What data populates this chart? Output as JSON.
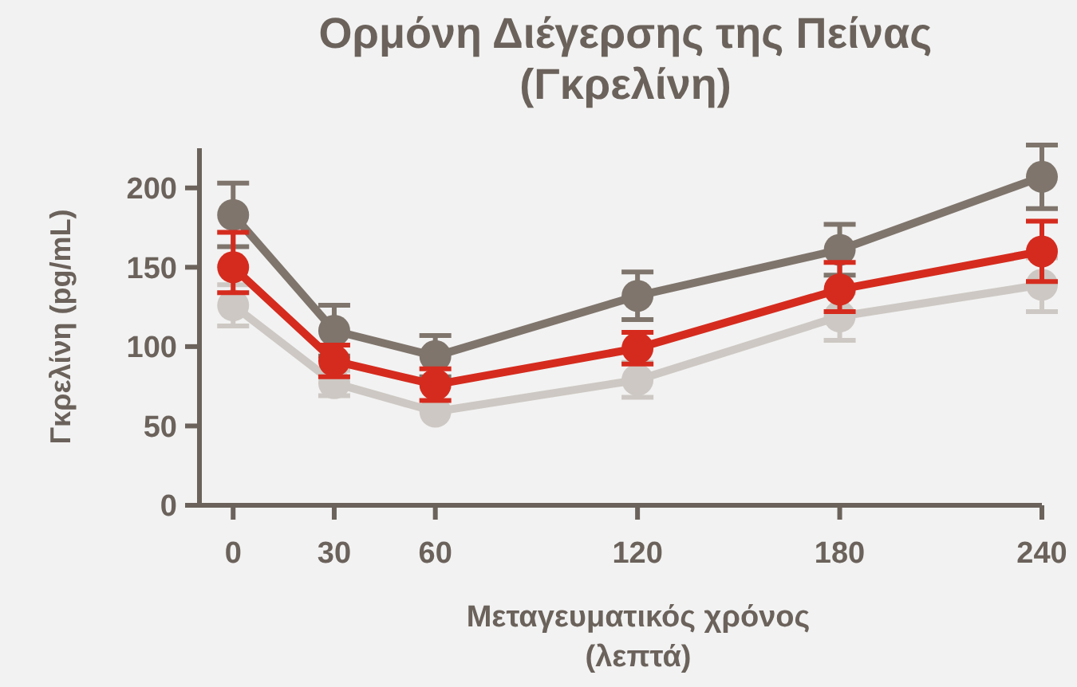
{
  "chart_data": {
    "type": "line",
    "title": "Ορμόνη Διέγερσης της Πείνας\n(Γκρελίνη)",
    "xlabel": "Μεταγευματικός χρόνος\n(λεπτά)",
    "ylabel": "Γκρελίνη (pg/mL)",
    "x": [
      0,
      30,
      60,
      120,
      180,
      240
    ],
    "xlim": [
      -10,
      240
    ],
    "xticks": [
      0,
      30,
      60,
      120,
      180,
      240
    ],
    "ylim": [
      0,
      225
    ],
    "yticks": [
      0,
      50,
      100,
      150,
      200
    ],
    "marker": "circle",
    "line_style": "solid",
    "series": [
      {
        "color": "#cdc8c3",
        "values": [
          126,
          77,
          59,
          79,
          119,
          139
        ],
        "errors": [
          13,
          8,
          null,
          11,
          15,
          17
        ]
      },
      {
        "color": "#7f756c",
        "values": [
          183,
          110,
          94,
          132,
          161,
          207
        ],
        "errors": [
          20,
          16,
          13,
          15,
          16,
          20
        ]
      },
      {
        "color": "#d52b1e",
        "values": [
          150,
          91,
          76,
          99,
          136,
          160
        ],
        "errors": [
          [
            134,
            172
          ],
          10,
          10,
          10,
          [
            122,
            153
          ],
          [
            141,
            179
          ]
        ]
      }
    ]
  }
}
